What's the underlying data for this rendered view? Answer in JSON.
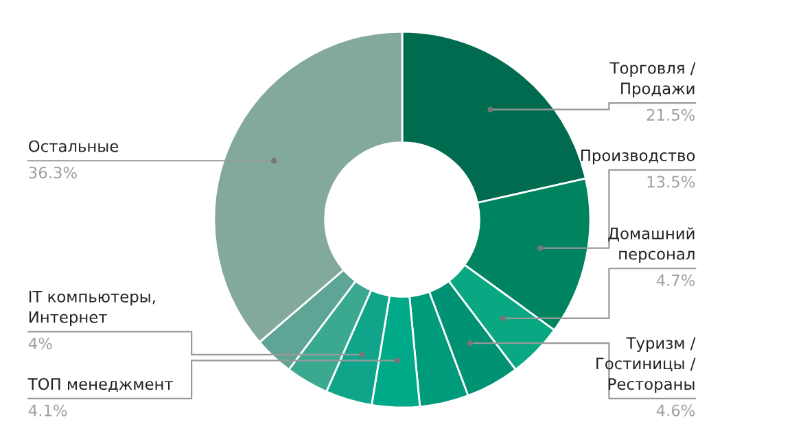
{
  "chart_data": {
    "type": "donut",
    "categories": [
      "Торговля /\nПродажи",
      "Производство",
      "Домашний\nперсонал",
      "Туризм /\nГостиницы /\nРестораны",
      null,
      "ТОП менеджмент",
      "IT компьютеры,\nИнтернет",
      null,
      null,
      "Остальные"
    ],
    "values": [
      21.5,
      13.5,
      4.7,
      4.6,
      4.2,
      4.1,
      4,
      3.7,
      3.4,
      36.3
    ],
    "value_labels": [
      "21.5%",
      "13.5%",
      "4.7%",
      "4.6%",
      null,
      "4.1%",
      "4%",
      null,
      null,
      "36.3%"
    ],
    "colors": [
      "#006b4f",
      "#00845f",
      "#0aa882",
      "#009272",
      "#009b7a",
      "#00aa88",
      "#10a58a",
      "#3aa98f",
      "#5fa595",
      "#83a89c"
    ],
    "legend": false
  }
}
